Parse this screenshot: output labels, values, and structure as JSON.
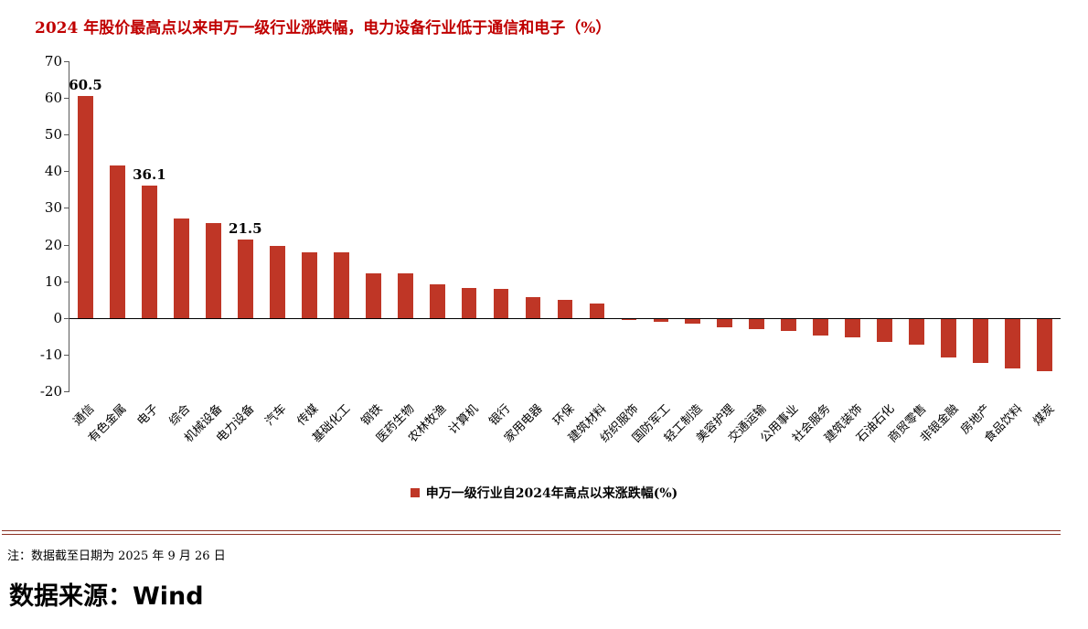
{
  "title": "2024 年股价最高点以来申万一级行业涨跌幅，电力设备行业低于通信和电子（%）",
  "footnote": "注：数据截至日期为 2025 年 9 月 26 日",
  "source": "数据来源：Wind",
  "colors": {
    "bar": "#BF3626",
    "title": "#C00000",
    "divider": "#8B3123",
    "axis": "#595959",
    "zero_line": "#000000"
  },
  "chart_data": {
    "type": "bar",
    "title": "2024 年股价最高点以来申万一级行业涨跌幅，电力设备行业低于通信和电子（%）",
    "legend": "申万一级行业自2024年高点以来涨跌幅(%)",
    "legend_position": "bottom",
    "xlabel": "",
    "ylabel": "",
    "ylim": [
      -20,
      70
    ],
    "yticks": [
      70,
      60,
      50,
      40,
      30,
      20,
      10,
      0,
      -10,
      -20
    ],
    "grid": false,
    "categories": [
      "通信",
      "有色金属",
      "电子",
      "综合",
      "机械设备",
      "电力设备",
      "汽车",
      "传媒",
      "基础化工",
      "钢铁",
      "医药生物",
      "农林牧渔",
      "计算机",
      "银行",
      "家用电器",
      "环保",
      "建筑材料",
      "纺织服饰",
      "国防军工",
      "轻工制造",
      "美容护理",
      "交通运输",
      "公用事业",
      "社会服务",
      "建筑装饰",
      "石油石化",
      "商贸零售",
      "非银金融",
      "房地产",
      "食品饮料",
      "煤炭"
    ],
    "values": [
      60.5,
      41.6,
      36.1,
      27.2,
      25.8,
      21.5,
      19.6,
      18.0,
      18.0,
      12.2,
      12.1,
      9.2,
      8.1,
      8.0,
      5.7,
      5.0,
      3.9,
      -0.3,
      -0.8,
      -1.3,
      -2.3,
      -2.7,
      -3.2,
      -4.5,
      -5.0,
      -6.3,
      -7.0,
      -10.5,
      -12.0,
      -13.6,
      -14.3
    ],
    "annotations": [
      {
        "index": 0,
        "text": "60.5"
      },
      {
        "index": 2,
        "text": "36.1"
      },
      {
        "index": 5,
        "text": "21.5"
      }
    ]
  }
}
